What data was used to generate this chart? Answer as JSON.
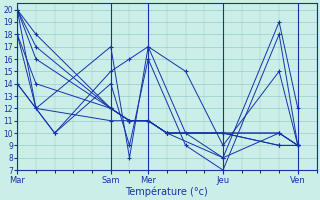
{
  "xlabel": "Température (°c)",
  "background_color": "#cceee8",
  "grid_color": "#99cccc",
  "line_color": "#1133aa",
  "ylim": [
    7,
    20.5
  ],
  "yticks": [
    7,
    8,
    9,
    10,
    11,
    12,
    13,
    14,
    15,
    16,
    17,
    18,
    19,
    20
  ],
  "xlim": [
    0,
    32
  ],
  "day_tick_positions": [
    0,
    10,
    14,
    22,
    30
  ],
  "day_tick_labels": [
    "Mar",
    "Sam",
    "Mer",
    "Jeu",
    "Ven"
  ],
  "series": [
    {
      "x": [
        0,
        2,
        10,
        12,
        14,
        16,
        22,
        28,
        30
      ],
      "y": [
        20,
        18,
        12,
        11,
        11,
        10,
        10,
        9,
        9
      ]
    },
    {
      "x": [
        0,
        2,
        10,
        12,
        14,
        16,
        22,
        28,
        30
      ],
      "y": [
        20,
        17,
        12,
        11,
        11,
        10,
        10,
        10,
        9
      ]
    },
    {
      "x": [
        0,
        2,
        10,
        12,
        14,
        16,
        22,
        28,
        30
      ],
      "y": [
        20,
        16,
        12,
        11,
        11,
        10,
        10,
        10,
        9
      ]
    },
    {
      "x": [
        0,
        2,
        10,
        12,
        14,
        16,
        22,
        28,
        30
      ],
      "y": [
        18,
        14,
        12,
        11,
        11,
        10,
        10,
        9,
        9
      ]
    },
    {
      "x": [
        0,
        2,
        10,
        12,
        14,
        16,
        22,
        28,
        30
      ],
      "y": [
        18,
        12,
        11,
        11,
        11,
        10,
        8,
        10,
        9
      ]
    },
    {
      "x": [
        0,
        2,
        10,
        12,
        14,
        18,
        22,
        28,
        30
      ],
      "y": [
        20,
        12,
        17,
        8,
        17,
        10,
        8,
        19,
        12
      ]
    },
    {
      "x": [
        0,
        4,
        10,
        12,
        14,
        18,
        22,
        28,
        30
      ],
      "y": [
        14,
        10,
        15,
        16,
        17,
        15,
        9,
        15,
        9
      ]
    },
    {
      "x": [
        0,
        4,
        10,
        12,
        14,
        18,
        22,
        28,
        30
      ],
      "y": [
        14,
        10,
        14,
        9,
        16,
        9,
        7,
        18,
        9
      ]
    }
  ]
}
